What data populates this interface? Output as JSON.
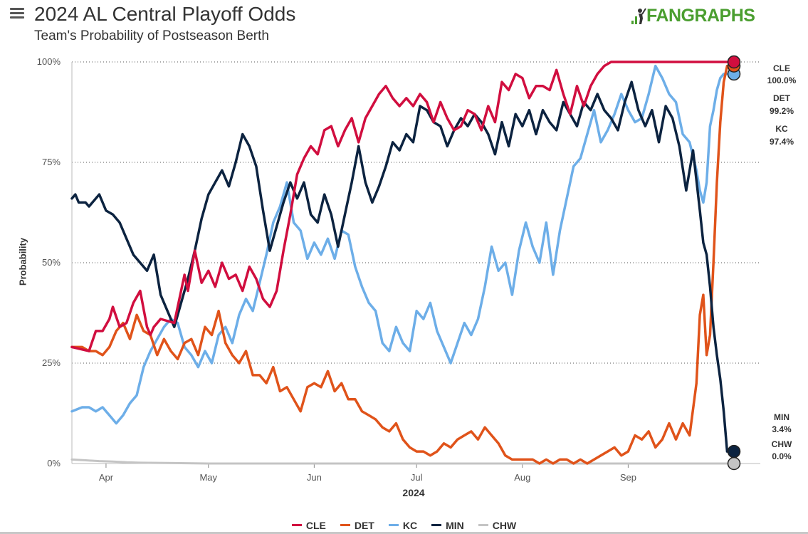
{
  "header": {
    "title": "2024 AL Central Playoff Odds",
    "subtitle": "Team's Probability of Postseason Berth",
    "logo_text": "FANGRAPHS",
    "menu_icon": "hamburger-menu-icon",
    "logo_icon": "fangraphs-batter-logo-icon"
  },
  "chart_data": {
    "type": "line",
    "title": "2024 AL Central Playoff Odds",
    "subtitle": "Team's Probability of Postseason Berth",
    "xlabel": "2024",
    "ylabel": "Probability",
    "x_ticks": [
      "Apr",
      "May",
      "Jun",
      "Jul",
      "Aug",
      "Sep"
    ],
    "x_tick_days": [
      10,
      40,
      71,
      101,
      132,
      163
    ],
    "y_ticks": [
      "0%",
      "25%",
      "50%",
      "75%",
      "100%"
    ],
    "y_tick_values": [
      0,
      25,
      50,
      75,
      100
    ],
    "ylim": [
      0,
      100
    ],
    "xlim": [
      0,
      194
    ],
    "grid": "horizontal dotted",
    "legend_position": "bottom",
    "x_unit": "days since Mar 20, 2024",
    "series": [
      {
        "name": "CLE",
        "color": "#d10e3f",
        "final_label": "100.0%",
        "x": [
          0,
          5,
          7,
          9,
          11,
          12,
          14,
          16,
          18,
          20,
          22,
          23,
          24,
          26,
          30,
          33,
          34,
          36,
          38,
          40,
          42,
          44,
          46,
          48,
          50,
          52,
          54,
          56,
          58,
          60,
          62,
          64,
          66,
          68,
          70,
          72,
          74,
          76,
          78,
          80,
          82,
          84,
          86,
          88,
          90,
          92,
          94,
          96,
          98,
          100,
          102,
          104,
          106,
          108,
          110,
          112,
          114,
          116,
          118,
          120,
          122,
          124,
          126,
          128,
          130,
          132,
          134,
          136,
          138,
          140,
          142,
          144,
          146,
          148,
          150,
          152,
          154,
          156,
          158,
          160,
          162,
          164,
          166,
          168,
          170,
          172,
          174,
          176,
          178,
          180,
          182,
          184,
          186,
          188,
          190,
          192
        ],
        "y": [
          29,
          28,
          33,
          33,
          36,
          39,
          34,
          35,
          40,
          43,
          34,
          32,
          34,
          36,
          35,
          47,
          43,
          53,
          45,
          48,
          44,
          50,
          46,
          47,
          43,
          49,
          46,
          41,
          39,
          43,
          53,
          62,
          72,
          76,
          79,
          77,
          83,
          84,
          79,
          83,
          86,
          80,
          86,
          89,
          92,
          94,
          91,
          89,
          91,
          89,
          92,
          90,
          85,
          90,
          86,
          83,
          84,
          88,
          87,
          83,
          89,
          85,
          95,
          93,
          97,
          96,
          91,
          94,
          94,
          93,
          98,
          92,
          87,
          94,
          89,
          94,
          97,
          99,
          100,
          100,
          100,
          100,
          100,
          100,
          100,
          100,
          100,
          100,
          100,
          100,
          100,
          100,
          100,
          100,
          100,
          100
        ]
      },
      {
        "name": "DET",
        "color": "#e0531a",
        "final_label": "99.2%",
        "x": [
          0,
          3,
          5,
          7,
          9,
          11,
          13,
          15,
          17,
          19,
          21,
          23,
          25,
          27,
          29,
          31,
          33,
          35,
          37,
          39,
          41,
          43,
          45,
          47,
          49,
          51,
          53,
          55,
          57,
          59,
          61,
          63,
          65,
          67,
          69,
          71,
          73,
          75,
          77,
          79,
          81,
          83,
          85,
          87,
          89,
          91,
          93,
          95,
          97,
          99,
          101,
          103,
          105,
          107,
          109,
          111,
          113,
          115,
          117,
          119,
          121,
          123,
          125,
          127,
          129,
          131,
          133,
          135,
          137,
          139,
          141,
          143,
          145,
          147,
          149,
          151,
          153,
          155,
          157,
          159,
          161,
          163,
          165,
          167,
          169,
          171,
          173,
          175,
          177,
          179,
          181,
          183,
          184,
          185,
          186,
          187,
          188,
          189,
          190,
          191,
          192
        ],
        "y": [
          29,
          29,
          28,
          28,
          27,
          29,
          33,
          35,
          31,
          37,
          33,
          32,
          27,
          31,
          28,
          26,
          30,
          31,
          27,
          34,
          32,
          38,
          30,
          27,
          25,
          28,
          22,
          22,
          20,
          24,
          18,
          19,
          16,
          13,
          19,
          20,
          19,
          23,
          18,
          20,
          16,
          16,
          13,
          12,
          11,
          9,
          8,
          10,
          6,
          4,
          3,
          3,
          2,
          3,
          5,
          4,
          6,
          7,
          8,
          6,
          9,
          7,
          5,
          2,
          1,
          1,
          1,
          1,
          0,
          1,
          0,
          1,
          1,
          0,
          1,
          0,
          1,
          2,
          3,
          4,
          2,
          3,
          7,
          6,
          8,
          4,
          6,
          10,
          6,
          10,
          7,
          20,
          37,
          42,
          27,
          32,
          50,
          70,
          85,
          95,
          99
        ]
      },
      {
        "name": "KC",
        "color": "#6daee8",
        "final_label": "97.4%",
        "x": [
          0,
          3,
          5,
          7,
          9,
          11,
          13,
          15,
          17,
          19,
          21,
          23,
          25,
          27,
          29,
          31,
          33,
          35,
          37,
          39,
          41,
          43,
          45,
          47,
          49,
          51,
          53,
          55,
          57,
          59,
          61,
          63,
          65,
          67,
          69,
          71,
          73,
          75,
          77,
          79,
          81,
          83,
          85,
          87,
          89,
          91,
          93,
          95,
          97,
          99,
          101,
          103,
          105,
          107,
          109,
          111,
          113,
          115,
          117,
          119,
          121,
          123,
          125,
          127,
          129,
          131,
          133,
          135,
          137,
          139,
          141,
          143,
          145,
          147,
          149,
          151,
          153,
          155,
          157,
          159,
          161,
          163,
          165,
          167,
          169,
          171,
          173,
          175,
          177,
          179,
          181,
          183,
          184,
          185,
          186,
          187,
          188,
          189,
          190,
          191,
          192
        ],
        "y": [
          13,
          14,
          14,
          13,
          14,
          12,
          10,
          12,
          15,
          17,
          24,
          28,
          31,
          34,
          36,
          35,
          29,
          27,
          24,
          28,
          25,
          32,
          34,
          30,
          37,
          41,
          38,
          45,
          52,
          60,
          64,
          70,
          60,
          58,
          51,
          55,
          52,
          56,
          51,
          58,
          57,
          49,
          44,
          40,
          38,
          30,
          28,
          34,
          30,
          28,
          38,
          36,
          40,
          33,
          29,
          25,
          30,
          35,
          32,
          36,
          44,
          54,
          48,
          50,
          42,
          53,
          60,
          54,
          50,
          60,
          47,
          58,
          66,
          74,
          76,
          82,
          88,
          80,
          83,
          87,
          92,
          88,
          85,
          86,
          92,
          99,
          96,
          92,
          90,
          82,
          80,
          73,
          68,
          65,
          70,
          84,
          88,
          93,
          96,
          97,
          97
        ]
      },
      {
        "name": "MIN",
        "color": "#0c2340",
        "final_label": "3.4%",
        "x": [
          0,
          1,
          2,
          3,
          4,
          5,
          6,
          8,
          10,
          12,
          14,
          16,
          18,
          20,
          22,
          24,
          26,
          28,
          30,
          32,
          34,
          36,
          38,
          40,
          42,
          44,
          46,
          48,
          50,
          52,
          54,
          56,
          58,
          60,
          62,
          64,
          66,
          68,
          70,
          72,
          74,
          76,
          78,
          80,
          82,
          84,
          86,
          88,
          90,
          92,
          94,
          96,
          98,
          100,
          102,
          104,
          106,
          108,
          110,
          112,
          114,
          116,
          118,
          120,
          122,
          124,
          126,
          128,
          130,
          132,
          134,
          136,
          138,
          140,
          142,
          144,
          146,
          148,
          150,
          152,
          154,
          156,
          158,
          160,
          162,
          164,
          166,
          168,
          170,
          172,
          174,
          176,
          178,
          180,
          182,
          184,
          185,
          186,
          187,
          188,
          189,
          190,
          191,
          192
        ],
        "y": [
          66,
          67,
          65,
          65,
          65,
          64,
          65,
          67,
          63,
          62,
          60,
          56,
          52,
          50,
          48,
          52,
          42,
          38,
          34,
          40,
          46,
          53,
          61,
          67,
          70,
          73,
          69,
          75,
          82,
          79,
          74,
          63,
          53,
          59,
          65,
          70,
          66,
          70,
          62,
          60,
          67,
          62,
          54,
          62,
          70,
          79,
          70,
          65,
          69,
          74,
          80,
          78,
          82,
          80,
          89,
          88,
          85,
          84,
          79,
          83,
          86,
          84,
          87,
          85,
          82,
          77,
          85,
          79,
          87,
          84,
          88,
          82,
          88,
          85,
          83,
          90,
          87,
          84,
          90,
          88,
          92,
          88,
          86,
          83,
          90,
          95,
          88,
          84,
          88,
          80,
          89,
          86,
          79,
          68,
          78,
          63,
          55,
          52,
          44,
          34,
          27,
          21,
          13,
          3
        ]
      },
      {
        "name": "CHW",
        "color": "#c4c4c4",
        "final_label": "0.0%",
        "x": [
          0,
          4,
          8,
          12,
          16,
          20,
          30,
          40,
          60,
          80,
          100,
          120,
          140,
          160,
          180,
          192
        ],
        "y": [
          1,
          0.8,
          0.6,
          0.5,
          0.3,
          0.2,
          0.1,
          0,
          0,
          0,
          0,
          0,
          0,
          0,
          0,
          0
        ]
      }
    ]
  }
}
